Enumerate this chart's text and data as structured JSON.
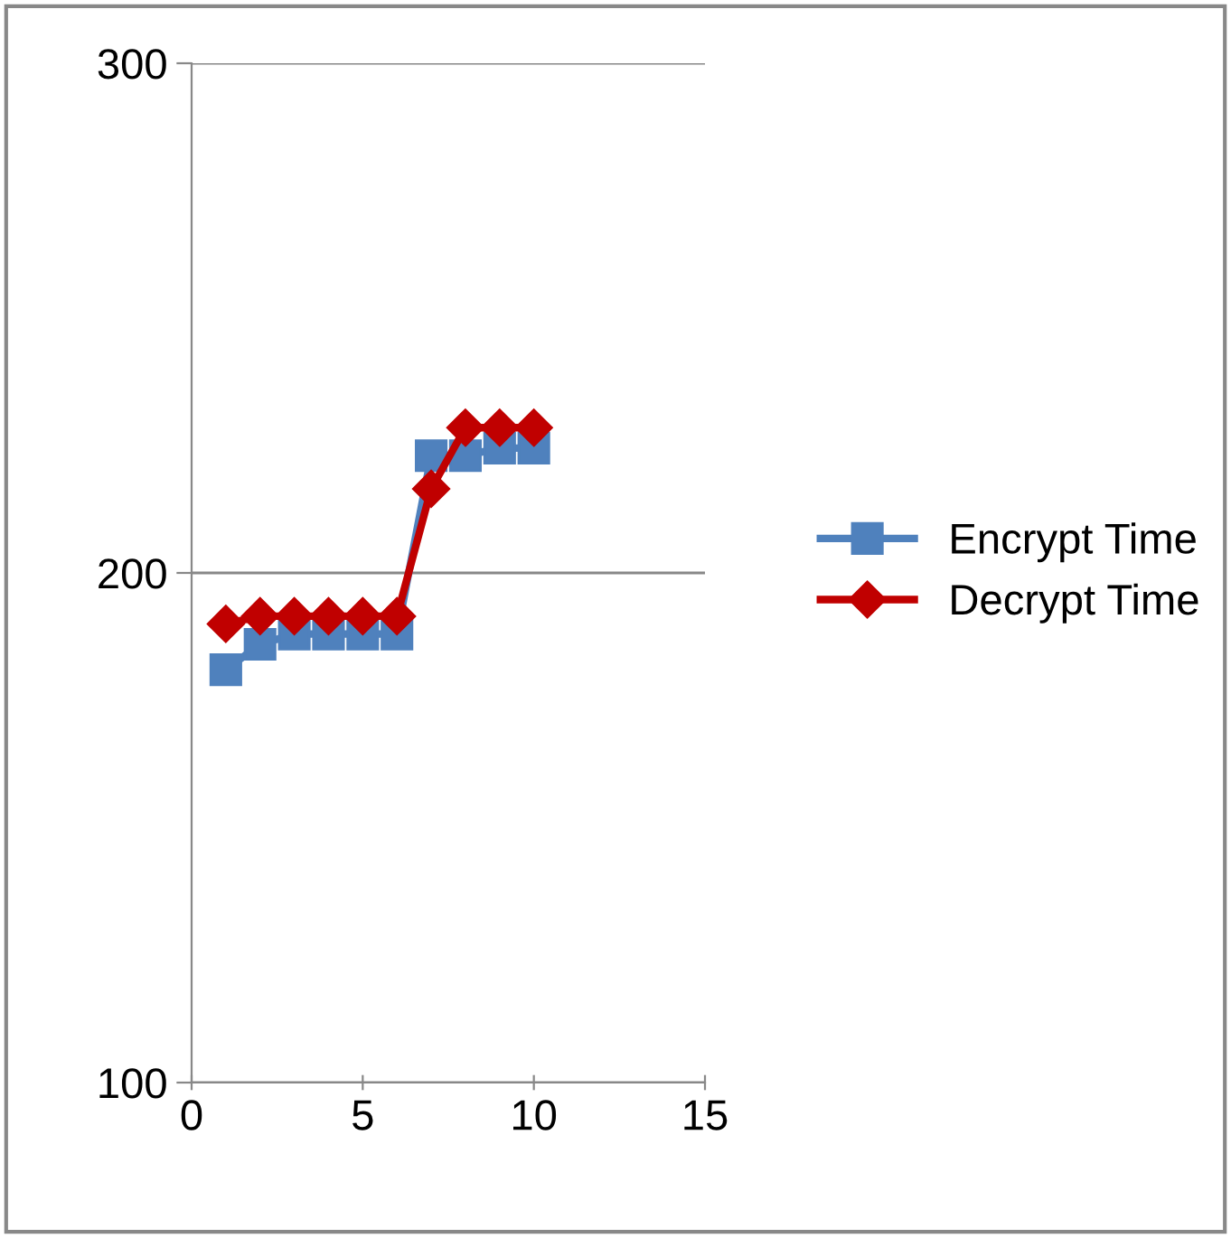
{
  "chart_data": {
    "type": "line",
    "x": [
      1,
      2,
      3,
      4,
      5,
      6,
      7,
      8,
      9,
      10
    ],
    "series": [
      {
        "name": "Encrypt Time",
        "color": "#4f81bd",
        "marker": "square",
        "values": [
          181,
          186,
          188,
          188,
          188,
          188,
          223,
          223,
          224.5,
          224.5
        ]
      },
      {
        "name": "Decrypt Time",
        "color": "#c00000",
        "marker": "diamond",
        "values": [
          190,
          191.5,
          191.5,
          191.5,
          191.5,
          191.5,
          216.5,
          228.5,
          228.5,
          228.5
        ]
      }
    ],
    "xlim": [
      0,
      15
    ],
    "xticks": [
      0,
      5,
      10,
      15
    ],
    "ylim": [
      100,
      300
    ],
    "yticks": [
      100,
      200,
      300
    ],
    "grid": "y",
    "legend": "right",
    "line_style": "solid"
  }
}
